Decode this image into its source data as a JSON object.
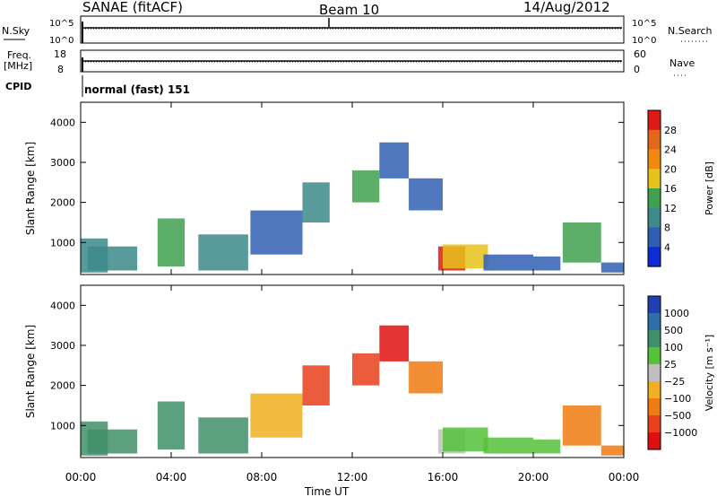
{
  "header": {
    "radar": "SANAE (fitACF)",
    "beam": "Beam 10",
    "date": "14/Aug/2012"
  },
  "strips": {
    "nsky_label": "N.Sky",
    "nsearch_label": "N.Search",
    "nsky_ticks": [
      "10^5",
      "10^0"
    ],
    "nsearch_ticks": [
      "10^5",
      "10^0"
    ],
    "freq_label_1": "Freq.",
    "freq_label_2": "[MHz]",
    "freq_ticks": [
      "18",
      "8"
    ],
    "nave_label": "Nave",
    "nave_ticks": [
      "60",
      "0"
    ],
    "cpid_label": "CPID",
    "cpid_value": "normal (fast) 151"
  },
  "chart_data": [
    {
      "type": "heatmap",
      "name": "power",
      "ylabel": "Slant Range [km]",
      "yticks": [
        "1000",
        "2000",
        "3000",
        "4000"
      ],
      "ylim": [
        200,
        4500
      ],
      "colorbar_label": "Power [dB]",
      "colorbar_ticks": [
        "4",
        "8",
        "12",
        "16",
        "20",
        "24",
        "28"
      ],
      "colors": [
        "#0f2bd8",
        "#2f5fb3",
        "#3c8a8a",
        "#3fa04f",
        "#e6c21a",
        "#f28a10",
        "#e6661c",
        "#dd1a14"
      ],
      "patches": [
        {
          "t0": 0.0,
          "t1": 1.2,
          "r0": 250,
          "r1": 1100,
          "level": 2
        },
        {
          "t0": 0.3,
          "t1": 2.5,
          "r0": 300,
          "r1": 900,
          "level": 2
        },
        {
          "t0": 3.4,
          "t1": 4.6,
          "r0": 400,
          "r1": 1600,
          "level": 3
        },
        {
          "t0": 5.2,
          "t1": 7.4,
          "r0": 300,
          "r1": 1200,
          "level": 2
        },
        {
          "t0": 7.5,
          "t1": 9.8,
          "r0": 700,
          "r1": 1800,
          "level": 1
        },
        {
          "t0": 9.8,
          "t1": 11.0,
          "r0": 1500,
          "r1": 2500,
          "level": 2
        },
        {
          "t0": 12.0,
          "t1": 13.2,
          "r0": 2000,
          "r1": 2800,
          "level": 3
        },
        {
          "t0": 13.2,
          "t1": 14.5,
          "r0": 2600,
          "r1": 3500,
          "level": 1
        },
        {
          "t0": 14.5,
          "t1": 16.0,
          "r0": 1800,
          "r1": 2600,
          "level": 1
        },
        {
          "t0": 15.8,
          "t1": 17.0,
          "r0": 300,
          "r1": 900,
          "level": 7
        },
        {
          "t0": 16.0,
          "t1": 18.0,
          "r0": 350,
          "r1": 950,
          "level": 4
        },
        {
          "t0": 17.8,
          "t1": 20.0,
          "r0": 300,
          "r1": 700,
          "level": 1
        },
        {
          "t0": 20.0,
          "t1": 21.2,
          "r0": 300,
          "r1": 650,
          "level": 1
        },
        {
          "t0": 21.3,
          "t1": 23.0,
          "r0": 500,
          "r1": 1500,
          "level": 3
        },
        {
          "t0": 23.0,
          "t1": 24.0,
          "r0": 250,
          "r1": 500,
          "level": 1
        }
      ]
    },
    {
      "type": "heatmap",
      "name": "velocity",
      "ylabel": "Slant Range [km]",
      "yticks": [
        "1000",
        "2000",
        "3000",
        "4000"
      ],
      "ylim": [
        200,
        4500
      ],
      "colorbar_label": "Velocity [m s⁻¹]",
      "colorbar_ticks": [
        "1000",
        "500",
        "100",
        "25",
        "−25",
        "−100",
        "−500",
        "−1000"
      ],
      "colors": [
        "#1f3fb3",
        "#2e6fa8",
        "#3f8f6a",
        "#56c23a",
        "#bfbfbf",
        "#f0b020",
        "#f07b10",
        "#e8401a",
        "#e01010"
      ],
      "patches": [
        {
          "t0": 0.0,
          "t1": 1.2,
          "r0": 250,
          "r1": 1100,
          "level": 2
        },
        {
          "t0": 0.3,
          "t1": 2.5,
          "r0": 300,
          "r1": 900,
          "level": 2
        },
        {
          "t0": 3.4,
          "t1": 4.6,
          "r0": 400,
          "r1": 1600,
          "level": 2
        },
        {
          "t0": 5.2,
          "t1": 7.4,
          "r0": 300,
          "r1": 1200,
          "level": 2
        },
        {
          "t0": 7.5,
          "t1": 9.8,
          "r0": 700,
          "r1": 1800,
          "level": 5
        },
        {
          "t0": 9.8,
          "t1": 11.0,
          "r0": 1500,
          "r1": 2500,
          "level": 7
        },
        {
          "t0": 12.0,
          "t1": 13.2,
          "r0": 2000,
          "r1": 2800,
          "level": 7
        },
        {
          "t0": 13.2,
          "t1": 14.5,
          "r0": 2600,
          "r1": 3500,
          "level": 8
        },
        {
          "t0": 14.5,
          "t1": 16.0,
          "r0": 1800,
          "r1": 2600,
          "level": 6
        },
        {
          "t0": 15.8,
          "t1": 17.0,
          "r0": 300,
          "r1": 900,
          "level": 4
        },
        {
          "t0": 16.0,
          "t1": 18.0,
          "r0": 350,
          "r1": 950,
          "level": 3
        },
        {
          "t0": 17.8,
          "t1": 20.0,
          "r0": 300,
          "r1": 700,
          "level": 3
        },
        {
          "t0": 20.0,
          "t1": 21.2,
          "r0": 300,
          "r1": 650,
          "level": 3
        },
        {
          "t0": 21.3,
          "t1": 23.0,
          "r0": 500,
          "r1": 1500,
          "level": 6
        },
        {
          "t0": 23.0,
          "t1": 24.0,
          "r0": 250,
          "r1": 500,
          "level": 6
        }
      ]
    }
  ],
  "xaxis": {
    "ticks": [
      "00:00",
      "04:00",
      "08:00",
      "12:00",
      "16:00",
      "20:00",
      "00:00"
    ],
    "label": "Time UT",
    "xlim": [
      0,
      24
    ]
  }
}
